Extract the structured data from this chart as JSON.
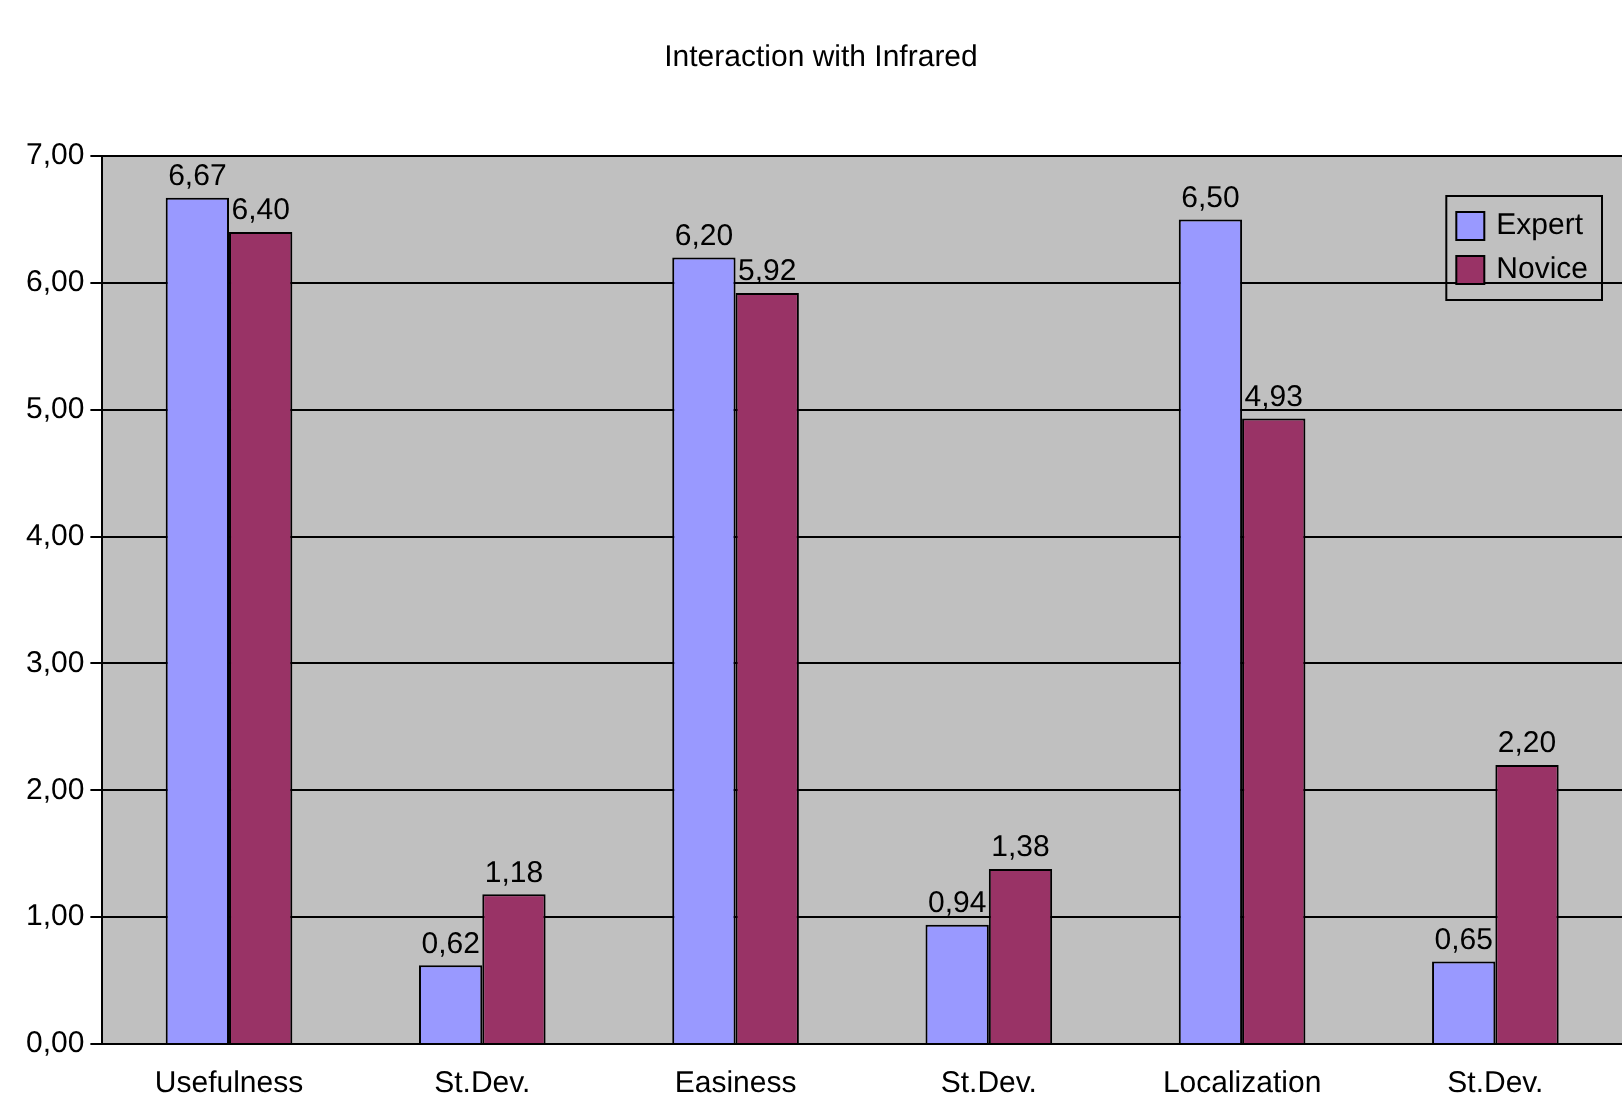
{
  "chart_data": {
    "type": "bar",
    "title": "Interaction with Infrared",
    "categories": [
      "Usefulness",
      "St.Dev.",
      "Easiness",
      "St.Dev.",
      "Localization",
      "St.Dev."
    ],
    "series": [
      {
        "name": "Expert",
        "color": "#9999ff",
        "values": [
          6.67,
          0.62,
          6.2,
          0.94,
          6.5,
          0.65
        ],
        "value_labels": [
          "6,67",
          "0,62",
          "6,20",
          "0,94",
          "6,50",
          "0,65"
        ]
      },
      {
        "name": "Novice",
        "color": "#993366",
        "values": [
          6.4,
          1.18,
          5.92,
          1.38,
          4.93,
          2.2
        ],
        "value_labels": [
          "6,40",
          "1,18",
          "5,92",
          "1,38",
          "4,93",
          "2,20"
        ]
      }
    ],
    "ylim": [
      0,
      7
    ],
    "yticks": [
      {
        "value": 0,
        "label": "0,00"
      },
      {
        "value": 1,
        "label": "1,00"
      },
      {
        "value": 2,
        "label": "2,00"
      },
      {
        "value": 3,
        "label": "3,00"
      },
      {
        "value": 4,
        "label": "4,00"
      },
      {
        "value": 5,
        "label": "5,00"
      },
      {
        "value": 6,
        "label": "6,00"
      },
      {
        "value": 7,
        "label": "7,00"
      }
    ],
    "grid": "y",
    "legend": "top right"
  }
}
